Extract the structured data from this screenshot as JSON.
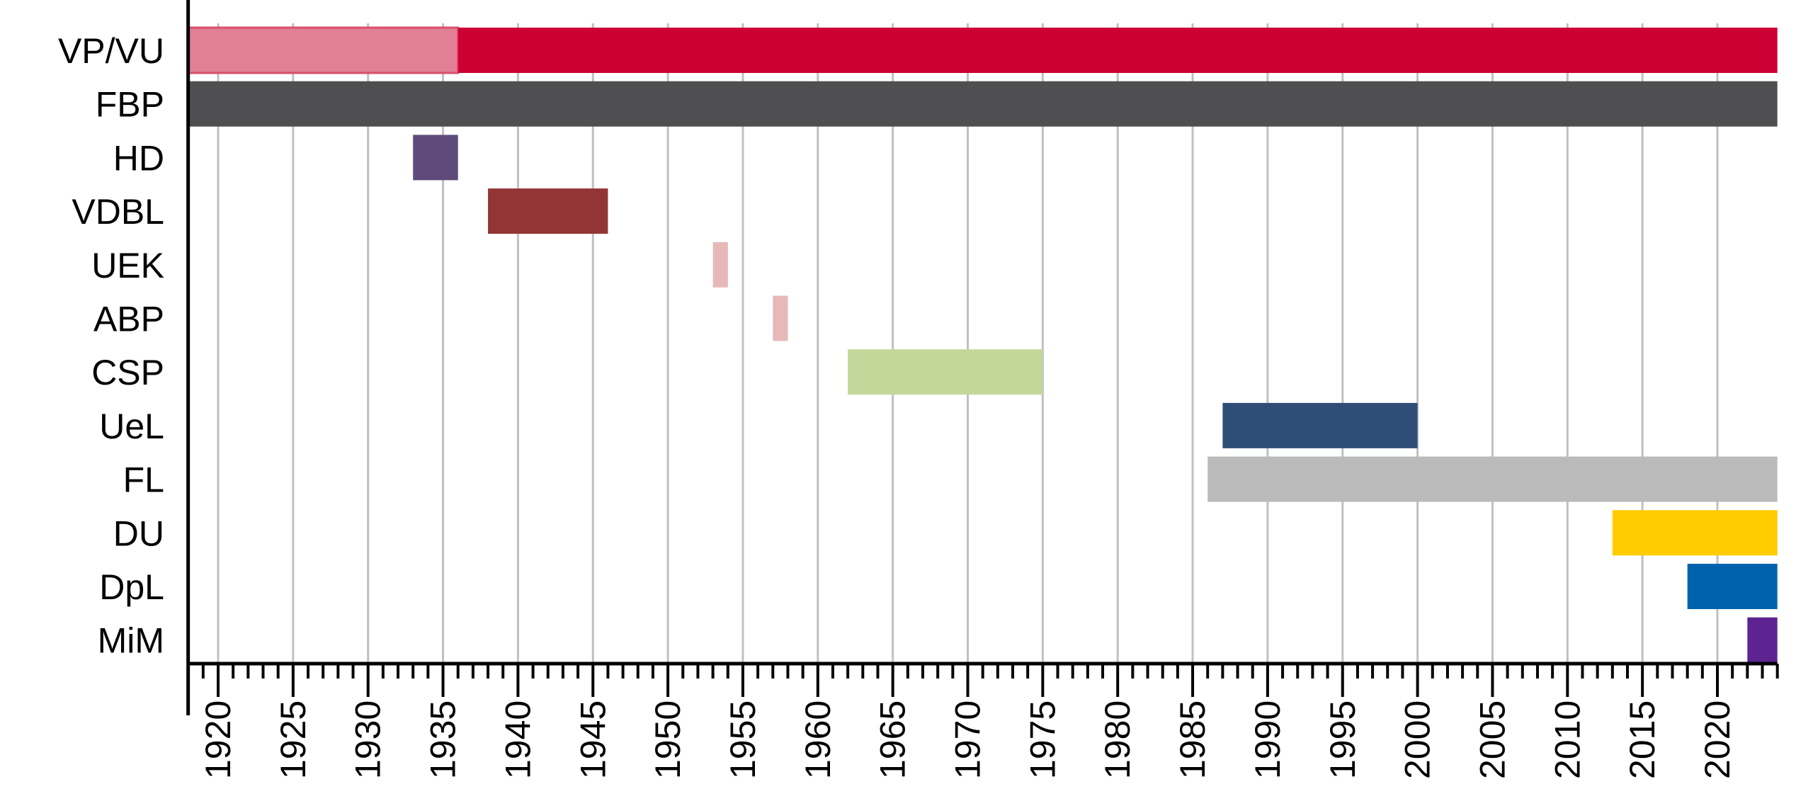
{
  "chart_data": {
    "type": "timeline",
    "title": "",
    "xlabel": "",
    "ylabel": "",
    "xlim": [
      1918,
      2024
    ],
    "x_ticks": [
      1920,
      1925,
      1930,
      1935,
      1940,
      1945,
      1950,
      1955,
      1960,
      1965,
      1970,
      1975,
      1980,
      1985,
      1990,
      1995,
      2000,
      2005,
      2010,
      2015,
      2020
    ],
    "grid": true,
    "legend": "none",
    "rows": [
      {
        "label": "VP/VU",
        "segments": [
          {
            "start": 1918,
            "end": 1936,
            "color": "#e17f95"
          },
          {
            "start": 1936,
            "end": 2024,
            "color": "#cc0033"
          }
        ]
      },
      {
        "label": "FBP",
        "segments": [
          {
            "start": 1918,
            "end": 2024,
            "color": "#4f4f51"
          }
        ]
      },
      {
        "label": "HD",
        "segments": [
          {
            "start": 1933,
            "end": 1936,
            "color": "#5f4b7b"
          }
        ]
      },
      {
        "label": "VDBL",
        "segments": [
          {
            "start": 1938,
            "end": 1946,
            "color": "#943535"
          }
        ]
      },
      {
        "label": "UEK",
        "segments": [
          {
            "start": 1953,
            "end": 1954,
            "color": "#e6b9b8"
          }
        ]
      },
      {
        "label": "ABP",
        "segments": [
          {
            "start": 1957,
            "end": 1958,
            "color": "#e6b9b8"
          }
        ]
      },
      {
        "label": "CSP",
        "segments": [
          {
            "start": 1962,
            "end": 1975,
            "color": "#c4d79b"
          }
        ]
      },
      {
        "label": "UeL",
        "segments": [
          {
            "start": 1987,
            "end": 2000,
            "color": "#2e4e78"
          }
        ]
      },
      {
        "label": "FL",
        "segments": [
          {
            "start": 1986,
            "end": 2024,
            "color": "#bababa"
          }
        ]
      },
      {
        "label": "DU",
        "segments": [
          {
            "start": 2013,
            "end": 2024,
            "color": "#ffcc00"
          }
        ]
      },
      {
        "label": "DpL",
        "segments": [
          {
            "start": 2018,
            "end": 2024,
            "color": "#0062ac"
          }
        ]
      },
      {
        "label": "MiM",
        "segments": [
          {
            "start": 2022,
            "end": 2024,
            "color": "#5c2391"
          }
        ]
      }
    ]
  }
}
